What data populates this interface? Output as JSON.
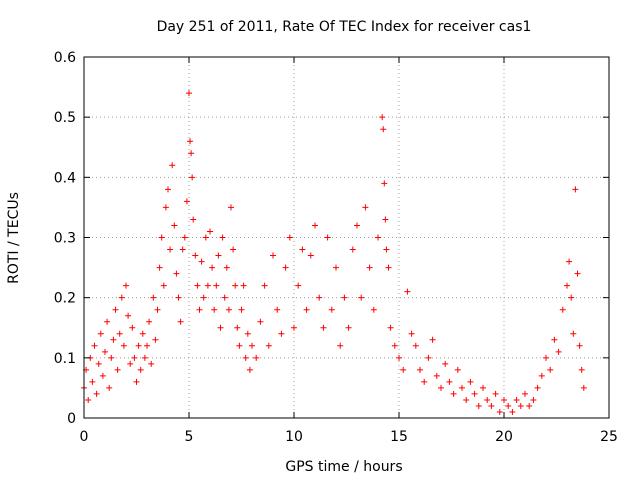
{
  "chart_data": {
    "type": "scatter",
    "title": "Day 251 of 2011, Rate Of TEC Index for receiver cas1",
    "xlabel": "GPS time / hours",
    "ylabel": "ROTI / TECUs",
    "xlim": [
      0,
      25
    ],
    "ylim": [
      0,
      0.6
    ],
    "xticks": [
      0,
      5,
      10,
      15,
      20,
      25
    ],
    "xtick_labels": [
      "0",
      "5",
      "10",
      "15",
      "20",
      "25"
    ],
    "yticks": [
      0,
      0.1,
      0.2,
      0.3,
      0.4,
      0.5,
      0.6
    ],
    "ytick_labels": [
      "0",
      "0.1",
      "0.2",
      "0.3",
      "0.4",
      "0.5",
      "0.6"
    ],
    "grid": true,
    "marker": "+",
    "marker_color": "#ff0000",
    "series": [
      {
        "name": "ROTI",
        "points": [
          [
            0.0,
            0.05
          ],
          [
            0.1,
            0.08
          ],
          [
            0.2,
            0.03
          ],
          [
            0.3,
            0.1
          ],
          [
            0.4,
            0.06
          ],
          [
            0.5,
            0.12
          ],
          [
            0.6,
            0.04
          ],
          [
            0.7,
            0.09
          ],
          [
            0.8,
            0.14
          ],
          [
            0.9,
            0.07
          ],
          [
            1.0,
            0.11
          ],
          [
            1.1,
            0.16
          ],
          [
            1.2,
            0.05
          ],
          [
            1.3,
            0.1
          ],
          [
            1.4,
            0.13
          ],
          [
            1.5,
            0.18
          ],
          [
            1.6,
            0.08
          ],
          [
            1.7,
            0.14
          ],
          [
            1.8,
            0.2
          ],
          [
            1.9,
            0.12
          ],
          [
            2.0,
            0.22
          ],
          [
            2.1,
            0.17
          ],
          [
            2.2,
            0.09
          ],
          [
            2.3,
            0.15
          ],
          [
            2.4,
            0.1
          ],
          [
            2.5,
            0.06
          ],
          [
            2.6,
            0.12
          ],
          [
            2.7,
            0.08
          ],
          [
            2.8,
            0.14
          ],
          [
            2.9,
            0.1
          ],
          [
            3.0,
            0.12
          ],
          [
            3.1,
            0.16
          ],
          [
            3.2,
            0.09
          ],
          [
            3.3,
            0.2
          ],
          [
            3.4,
            0.13
          ],
          [
            3.5,
            0.18
          ],
          [
            3.6,
            0.25
          ],
          [
            3.7,
            0.3
          ],
          [
            3.8,
            0.22
          ],
          [
            3.9,
            0.35
          ],
          [
            4.0,
            0.38
          ],
          [
            4.1,
            0.28
          ],
          [
            4.2,
            0.42
          ],
          [
            4.3,
            0.32
          ],
          [
            4.4,
            0.24
          ],
          [
            4.5,
            0.2
          ],
          [
            4.6,
            0.16
          ],
          [
            4.7,
            0.28
          ],
          [
            4.8,
            0.3
          ],
          [
            4.9,
            0.36
          ],
          [
            5.0,
            0.54
          ],
          [
            5.05,
            0.46
          ],
          [
            5.1,
            0.44
          ],
          [
            5.15,
            0.4
          ],
          [
            5.2,
            0.33
          ],
          [
            5.3,
            0.27
          ],
          [
            5.4,
            0.22
          ],
          [
            5.5,
            0.18
          ],
          [
            5.6,
            0.26
          ],
          [
            5.7,
            0.2
          ],
          [
            5.8,
            0.3
          ],
          [
            5.9,
            0.22
          ],
          [
            6.0,
            0.31
          ],
          [
            6.1,
            0.25
          ],
          [
            6.2,
            0.18
          ],
          [
            6.3,
            0.22
          ],
          [
            6.4,
            0.27
          ],
          [
            6.5,
            0.15
          ],
          [
            6.6,
            0.3
          ],
          [
            6.7,
            0.2
          ],
          [
            6.8,
            0.25
          ],
          [
            6.9,
            0.18
          ],
          [
            7.0,
            0.35
          ],
          [
            7.1,
            0.28
          ],
          [
            7.2,
            0.22
          ],
          [
            7.3,
            0.15
          ],
          [
            7.4,
            0.12
          ],
          [
            7.5,
            0.18
          ],
          [
            7.6,
            0.22
          ],
          [
            7.7,
            0.1
          ],
          [
            7.8,
            0.14
          ],
          [
            7.9,
            0.08
          ],
          [
            8.0,
            0.12
          ],
          [
            8.2,
            0.1
          ],
          [
            8.4,
            0.16
          ],
          [
            8.6,
            0.22
          ],
          [
            8.8,
            0.12
          ],
          [
            9.0,
            0.27
          ],
          [
            9.2,
            0.18
          ],
          [
            9.4,
            0.14
          ],
          [
            9.6,
            0.25
          ],
          [
            9.8,
            0.3
          ],
          [
            10.0,
            0.15
          ],
          [
            10.2,
            0.22
          ],
          [
            10.4,
            0.28
          ],
          [
            10.6,
            0.18
          ],
          [
            10.8,
            0.27
          ],
          [
            11.0,
            0.32
          ],
          [
            11.2,
            0.2
          ],
          [
            11.4,
            0.15
          ],
          [
            11.6,
            0.3
          ],
          [
            11.8,
            0.18
          ],
          [
            12.0,
            0.25
          ],
          [
            12.2,
            0.12
          ],
          [
            12.4,
            0.2
          ],
          [
            12.6,
            0.15
          ],
          [
            12.8,
            0.28
          ],
          [
            13.0,
            0.32
          ],
          [
            13.2,
            0.2
          ],
          [
            13.4,
            0.35
          ],
          [
            13.6,
            0.25
          ],
          [
            13.8,
            0.18
          ],
          [
            14.0,
            0.3
          ],
          [
            14.2,
            0.5
          ],
          [
            14.25,
            0.48
          ],
          [
            14.3,
            0.39
          ],
          [
            14.35,
            0.33
          ],
          [
            14.4,
            0.28
          ],
          [
            14.5,
            0.25
          ],
          [
            14.6,
            0.15
          ],
          [
            14.8,
            0.12
          ],
          [
            15.0,
            0.1
          ],
          [
            15.2,
            0.08
          ],
          [
            15.4,
            0.21
          ],
          [
            15.6,
            0.14
          ],
          [
            15.8,
            0.12
          ],
          [
            16.0,
            0.08
          ],
          [
            16.2,
            0.06
          ],
          [
            16.4,
            0.1
          ],
          [
            16.6,
            0.13
          ],
          [
            16.8,
            0.07
          ],
          [
            17.0,
            0.05
          ],
          [
            17.2,
            0.09
          ],
          [
            17.4,
            0.06
          ],
          [
            17.6,
            0.04
          ],
          [
            17.8,
            0.08
          ],
          [
            18.0,
            0.05
          ],
          [
            18.2,
            0.03
          ],
          [
            18.4,
            0.06
          ],
          [
            18.6,
            0.04
          ],
          [
            18.8,
            0.02
          ],
          [
            19.0,
            0.05
          ],
          [
            19.2,
            0.03
          ],
          [
            19.4,
            0.02
          ],
          [
            19.6,
            0.04
          ],
          [
            19.8,
            0.01
          ],
          [
            20.0,
            0.03
          ],
          [
            20.2,
            0.02
          ],
          [
            20.4,
            0.01
          ],
          [
            20.6,
            0.03
          ],
          [
            20.8,
            0.02
          ],
          [
            21.0,
            0.04
          ],
          [
            21.2,
            0.02
          ],
          [
            21.4,
            0.03
          ],
          [
            21.6,
            0.05
          ],
          [
            21.8,
            0.07
          ],
          [
            22.0,
            0.1
          ],
          [
            22.2,
            0.08
          ],
          [
            22.4,
            0.13
          ],
          [
            22.6,
            0.11
          ],
          [
            22.8,
            0.18
          ],
          [
            23.0,
            0.22
          ],
          [
            23.1,
            0.26
          ],
          [
            23.2,
            0.2
          ],
          [
            23.3,
            0.14
          ],
          [
            23.4,
            0.38
          ],
          [
            23.5,
            0.24
          ],
          [
            23.6,
            0.12
          ],
          [
            23.7,
            0.08
          ],
          [
            23.8,
            0.05
          ]
        ]
      }
    ]
  }
}
